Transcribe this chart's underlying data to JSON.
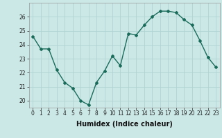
{
  "x": [
    0,
    1,
    2,
    3,
    4,
    5,
    6,
    7,
    8,
    9,
    10,
    11,
    12,
    13,
    14,
    15,
    16,
    17,
    18,
    19,
    20,
    21,
    22,
    23
  ],
  "y": [
    24.6,
    23.7,
    23.7,
    22.2,
    21.3,
    20.9,
    20.0,
    19.7,
    21.3,
    22.1,
    23.2,
    22.5,
    24.8,
    24.7,
    25.4,
    26.0,
    26.4,
    26.4,
    26.3,
    25.8,
    25.4,
    24.3,
    23.1,
    22.4
  ],
  "line_color": "#1a6b5a",
  "marker": "D",
  "marker_size": 2.0,
  "linewidth": 1.0,
  "bg_color": "#cbe8e7",
  "grid_color": "#b0d4d2",
  "xlabel": "Humidex (Indice chaleur)",
  "ylim": [
    19.5,
    27.0
  ],
  "yticks": [
    20,
    21,
    22,
    23,
    24,
    25,
    26
  ],
  "xticks": [
    0,
    1,
    2,
    3,
    4,
    5,
    6,
    7,
    8,
    9,
    10,
    11,
    12,
    13,
    14,
    15,
    16,
    17,
    18,
    19,
    20,
    21,
    22,
    23
  ],
  "tick_fontsize": 5.5,
  "xlabel_fontsize": 7.0
}
